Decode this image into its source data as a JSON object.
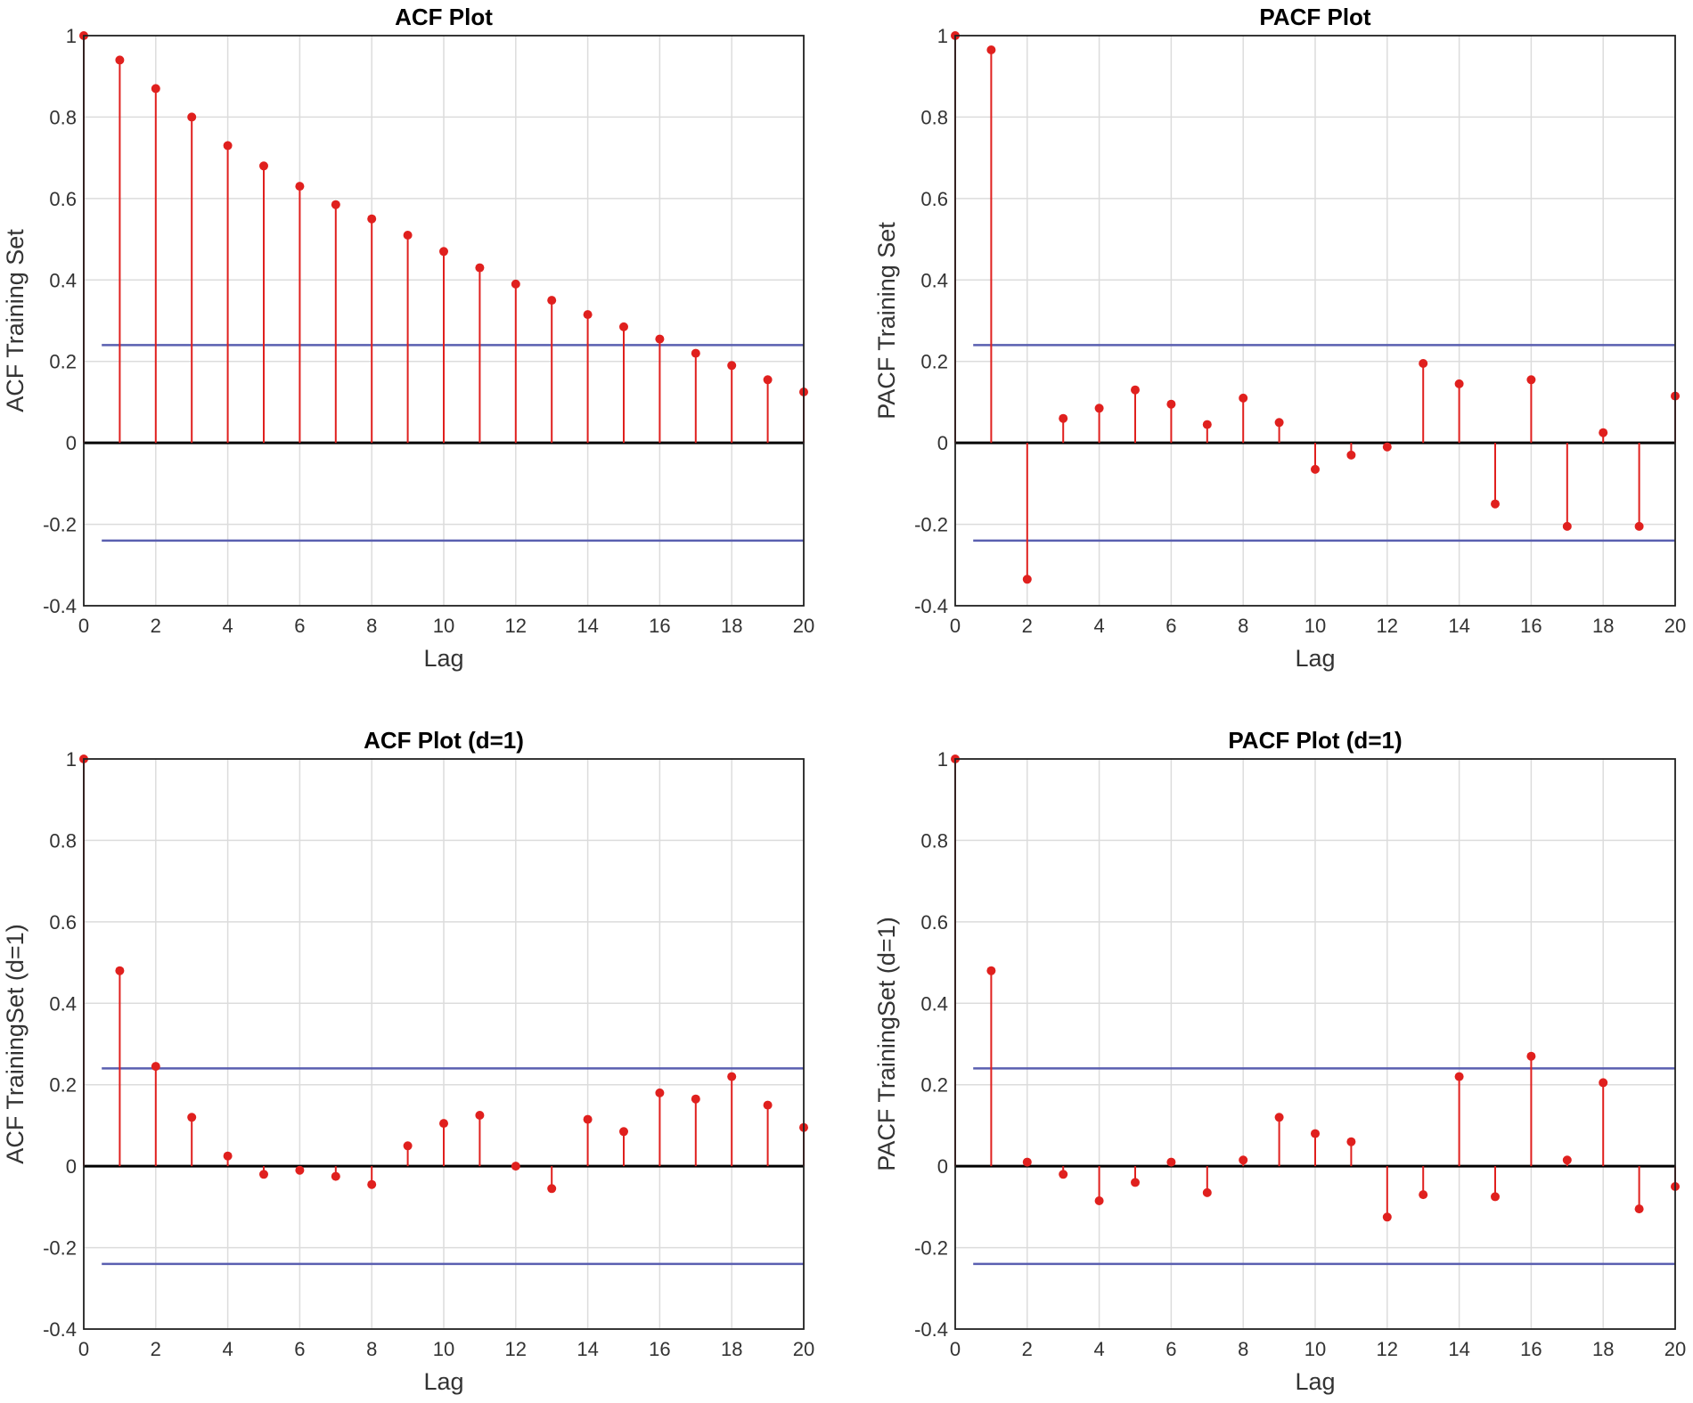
{
  "chart_data": [
    {
      "type": "stem",
      "title": "ACF Plot",
      "xlabel": "Lag",
      "ylabel": "ACF Training Set",
      "xlim": [
        0,
        20
      ],
      "ylim": [
        -0.4,
        1
      ],
      "xticks": [
        "0",
        "2",
        "4",
        "6",
        "8",
        "10",
        "12",
        "14",
        "16",
        "18",
        "20"
      ],
      "yticks": [
        "-0.4",
        "-0.2",
        "0",
        "0.2",
        "0.4",
        "0.6",
        "0.8",
        "1"
      ],
      "grid": true,
      "confidence_bounds": [
        0.24,
        -0.24
      ],
      "lags": [
        0,
        1,
        2,
        3,
        4,
        5,
        6,
        7,
        8,
        9,
        10,
        11,
        12,
        13,
        14,
        15,
        16,
        17,
        18,
        19,
        20
      ],
      "values": [
        1.0,
        0.94,
        0.87,
        0.8,
        0.73,
        0.68,
        0.63,
        0.585,
        0.55,
        0.51,
        0.47,
        0.43,
        0.39,
        0.35,
        0.315,
        0.285,
        0.255,
        0.22,
        0.19,
        0.155,
        0.125
      ]
    },
    {
      "type": "stem",
      "title": "PACF Plot",
      "xlabel": "Lag",
      "ylabel": "PACF Training Set",
      "xlim": [
        0,
        20
      ],
      "ylim": [
        -0.4,
        1
      ],
      "xticks": [
        "0",
        "2",
        "4",
        "6",
        "8",
        "10",
        "12",
        "14",
        "16",
        "18",
        "20"
      ],
      "yticks": [
        "-0.4",
        "-0.2",
        "0",
        "0.2",
        "0.4",
        "0.6",
        "0.8",
        "1"
      ],
      "grid": true,
      "confidence_bounds": [
        0.24,
        -0.24
      ],
      "lags": [
        0,
        1,
        2,
        3,
        4,
        5,
        6,
        7,
        8,
        9,
        10,
        11,
        12,
        13,
        14,
        15,
        16,
        17,
        18,
        19,
        20
      ],
      "values": [
        1.0,
        0.965,
        -0.335,
        0.06,
        0.085,
        0.13,
        0.095,
        0.045,
        0.11,
        0.05,
        -0.065,
        -0.03,
        -0.01,
        0.195,
        0.145,
        -0.15,
        0.155,
        -0.205,
        0.025,
        -0.205,
        0.115
      ]
    },
    {
      "type": "stem",
      "title": "ACF Plot (d=1)",
      "xlabel": "Lag",
      "ylabel": "ACF TrainingSet (d=1)",
      "xlim": [
        0,
        20
      ],
      "ylim": [
        -0.4,
        1
      ],
      "xticks": [
        "0",
        "2",
        "4",
        "6",
        "8",
        "10",
        "12",
        "14",
        "16",
        "18",
        "20"
      ],
      "yticks": [
        "-0.4",
        "-0.2",
        "0",
        "0.2",
        "0.4",
        "0.6",
        "0.8",
        "1"
      ],
      "grid": true,
      "confidence_bounds": [
        0.24,
        -0.24
      ],
      "lags": [
        0,
        1,
        2,
        3,
        4,
        5,
        6,
        7,
        8,
        9,
        10,
        11,
        12,
        13,
        14,
        15,
        16,
        17,
        18,
        19,
        20
      ],
      "values": [
        1.0,
        0.48,
        0.245,
        0.12,
        0.025,
        -0.02,
        -0.01,
        -0.025,
        -0.045,
        0.05,
        0.105,
        0.125,
        0.0,
        -0.055,
        0.115,
        0.085,
        0.18,
        0.165,
        0.22,
        0.15,
        0.095
      ]
    },
    {
      "type": "stem",
      "title": "PACF Plot (d=1)",
      "xlabel": "Lag",
      "ylabel": "PACF TrainingSet (d=1)",
      "xlim": [
        0,
        20
      ],
      "ylim": [
        -0.4,
        1
      ],
      "xticks": [
        "0",
        "2",
        "4",
        "6",
        "8",
        "10",
        "12",
        "14",
        "16",
        "18",
        "20"
      ],
      "yticks": [
        "-0.4",
        "-0.2",
        "0",
        "0.2",
        "0.4",
        "0.6",
        "0.8",
        "1"
      ],
      "grid": true,
      "confidence_bounds": [
        0.24,
        -0.24
      ],
      "lags": [
        0,
        1,
        2,
        3,
        4,
        5,
        6,
        7,
        8,
        9,
        10,
        11,
        12,
        13,
        14,
        15,
        16,
        17,
        18,
        19,
        20
      ],
      "values": [
        1.0,
        0.48,
        0.01,
        -0.02,
        -0.085,
        -0.04,
        0.01,
        -0.065,
        0.015,
        0.12,
        0.08,
        0.06,
        -0.125,
        -0.07,
        0.22,
        -0.075,
        0.27,
        0.015,
        0.205,
        -0.105,
        -0.05
      ]
    }
  ]
}
